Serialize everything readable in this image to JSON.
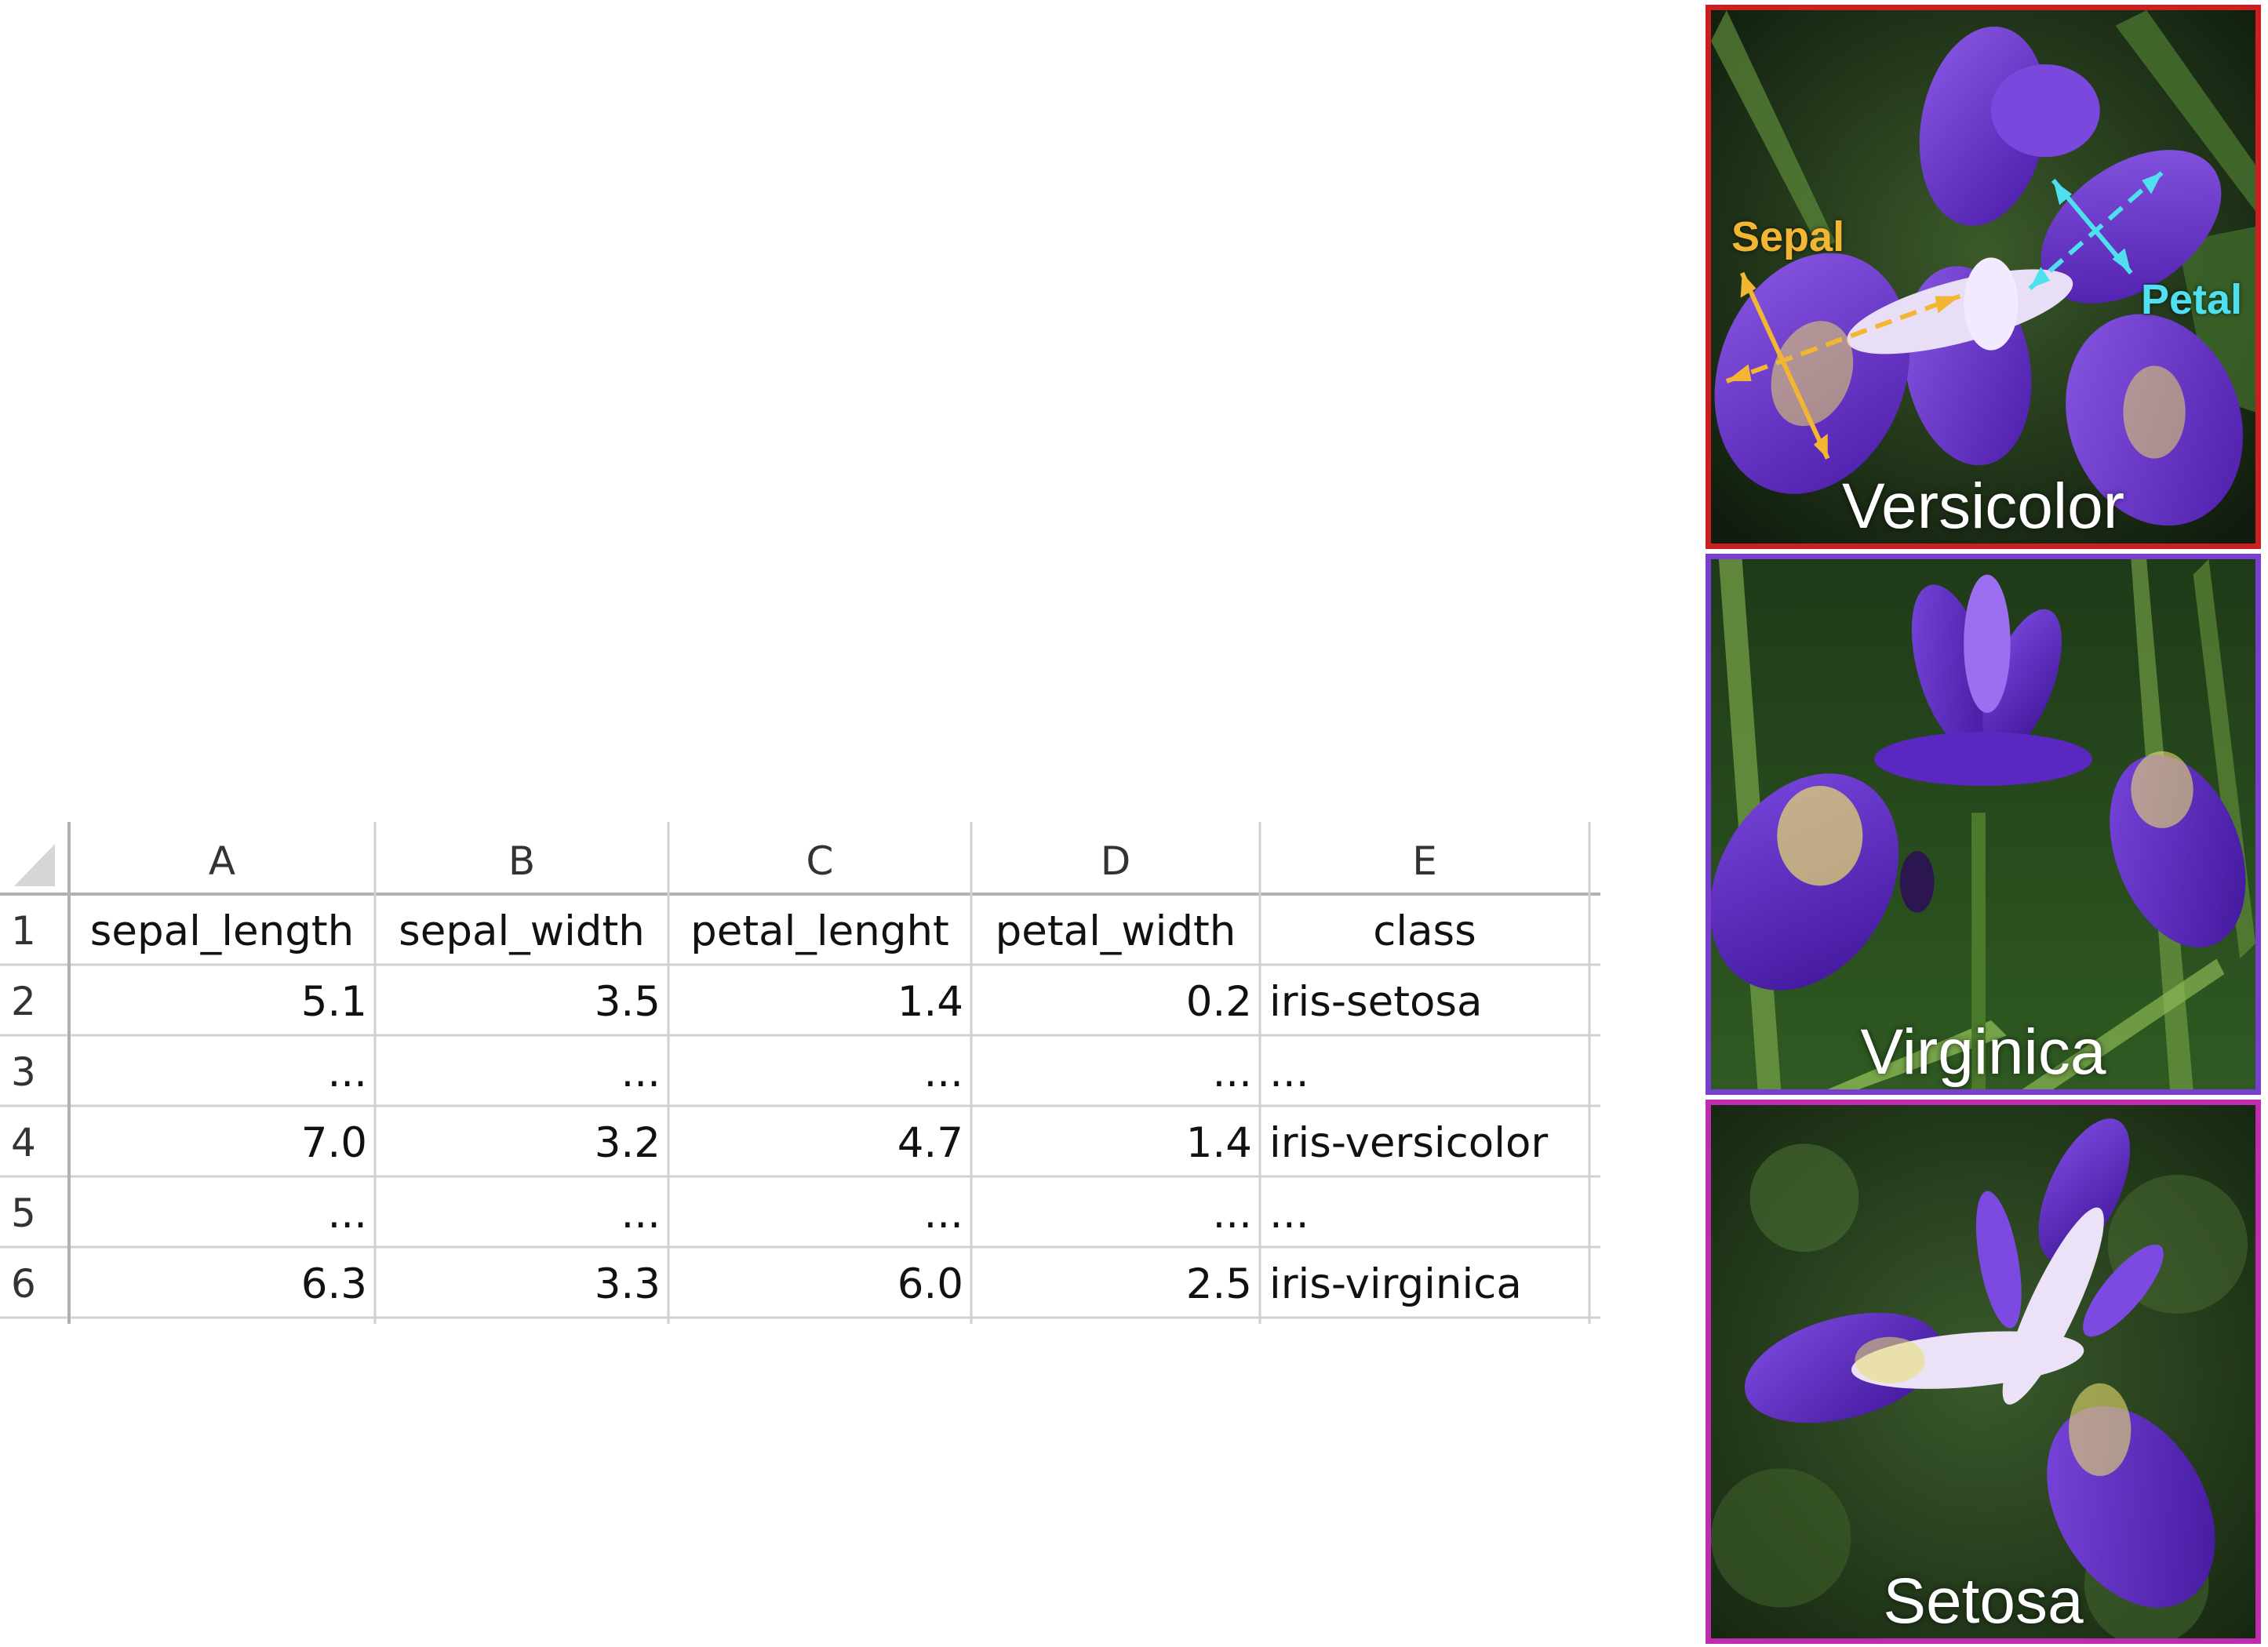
{
  "spreadsheet": {
    "columns": [
      "A",
      "B",
      "C",
      "D",
      "E"
    ],
    "row_numbers": [
      "1",
      "2",
      "3",
      "4",
      "5",
      "6"
    ],
    "header": [
      "sepal_length",
      "sepal_width",
      "petal_lenght",
      "petal_width",
      "class"
    ],
    "rows": [
      [
        "5.1",
        "3.5",
        "1.4",
        "0.2",
        "iris-setosa"
      ],
      [
        "...",
        "...",
        "...",
        "...",
        "..."
      ],
      [
        "7.0",
        "3.2",
        "4.7",
        "1.4",
        "iris-versicolor"
      ],
      [
        "...",
        "...",
        "...",
        "...",
        "..."
      ],
      [
        "6.3",
        "3.3",
        "6.0",
        "2.5",
        "iris-virginica"
      ]
    ]
  },
  "photos": {
    "versicolor": {
      "label": "Versicolor",
      "sepal": "Sepal",
      "petal": "Petal",
      "border": "#cc1f1f"
    },
    "virginica": {
      "label": "Virginica",
      "border": "#7a3fd0"
    },
    "setosa": {
      "label": "Setosa",
      "border": "#c02bb0"
    }
  },
  "colors": {
    "sepal": "#f2b632",
    "petal": "#4fe0f0",
    "petal_purple": "#6b2fd0"
  }
}
